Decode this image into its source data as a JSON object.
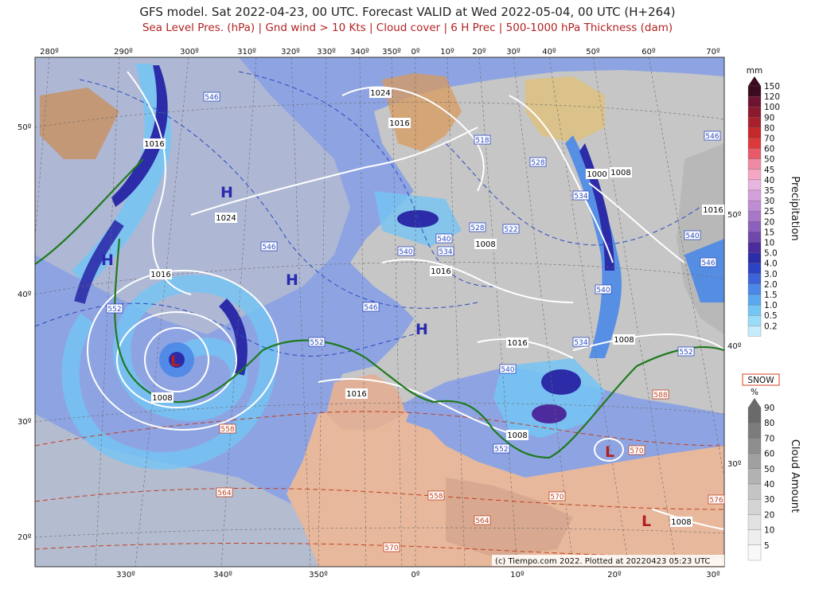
{
  "header": {
    "title": "GFS model. Sat 2022-04-23, 00 UTC. Forecast VALID at Wed 2022-05-04, 00 UTC (H+264)",
    "subtitle": "Sea Level Pres. (hPa) | Gnd wind > 10 Kts | Cloud cover | 6 H Prec | 500-1000 hPa Thickness (dam)"
  },
  "axes": {
    "top_lon_labels": [
      "280º",
      "290º",
      "300º",
      "310º",
      "320º",
      "330º",
      "340º",
      "350º",
      "0º",
      "10º",
      "20º",
      "30º",
      "40º",
      "50º",
      "60º",
      "70º"
    ],
    "bottom_lon_labels": [
      "330º",
      "340º",
      "350º",
      "0º",
      "10º",
      "20º",
      "30º"
    ],
    "left_lat_labels": [
      "50º",
      "40º",
      "30º",
      "20º"
    ],
    "right_lat_labels": [
      "50º",
      "40º",
      "30º"
    ]
  },
  "pressure_isobars": [
    "1016",
    "1024",
    "1024",
    "1016",
    "1016",
    "1016",
    "1016",
    "1008",
    "1008",
    "1000",
    "1008",
    "1008",
    "1016",
    "1008",
    "1008",
    "1016"
  ],
  "pressure_centers": [
    "H",
    "H",
    "H",
    "H",
    "L",
    "L",
    "L"
  ],
  "thickness_labels": {
    "blue": [
      "546",
      "546",
      "546",
      "540",
      "534",
      "528",
      "534",
      "518",
      "528",
      "522",
      "534",
      "540",
      "540",
      "540",
      "546",
      "546",
      "540",
      "552",
      "552",
      "552"
    ],
    "red": [
      "558",
      "564",
      "558",
      "564",
      "570",
      "570",
      "570",
      "576",
      "588",
      "552"
    ]
  },
  "precip_colorbar": {
    "unit": "mm",
    "title": "Precipitation",
    "levels": [
      "150",
      "120",
      "100",
      "90",
      "80",
      "70",
      "60",
      "50",
      "45",
      "40",
      "35",
      "30",
      "25",
      "20",
      "15",
      "10",
      "5.0",
      "4.0",
      "3.0",
      "2.0",
      "1.5",
      "1.0",
      "0.5",
      "0.2"
    ],
    "colors": [
      "#3b0a1e",
      "#6e1430",
      "#8c1a2e",
      "#a8202c",
      "#c4282a",
      "#dc3a3a",
      "#e85a6a",
      "#f08aa4",
      "#f4a6c4",
      "#e8b4e0",
      "#d4a0dc",
      "#c08cd4",
      "#a878c8",
      "#8c60bc",
      "#7048ac",
      "#4c2c9c",
      "#2c2ca8",
      "#2c44c4",
      "#3c64d8",
      "#4a88e8",
      "#5ca8f0",
      "#74c4f4",
      "#98dcf8",
      "#c4ecfc"
    ]
  },
  "snow_label": "SNOW",
  "cloud_colorbar": {
    "unit": "%",
    "title": "Cloud Amount",
    "levels": [
      "90",
      "80",
      "70",
      "60",
      "50",
      "40",
      "30",
      "20",
      "10",
      "5"
    ],
    "colors": [
      "#6a6a6a",
      "#7c7c7c",
      "#8e8e8e",
      "#a0a0a0",
      "#b2b2b2",
      "#c4c4c4",
      "#d4d4d4",
      "#e2e2e2",
      "#eeeeee",
      "#f8f8f8"
    ]
  },
  "credit": "(c) Tiempo.com 2022. Plotted at 20220423 05:23 UTC",
  "colors": {
    "sea_clear": "#8aa0e0",
    "land_clear": "#e8b89c",
    "isobar": "#ffffff",
    "front": "#1f7a1f",
    "thickness_blue": "#2a4ac0",
    "thickness_red": "#c04020"
  }
}
